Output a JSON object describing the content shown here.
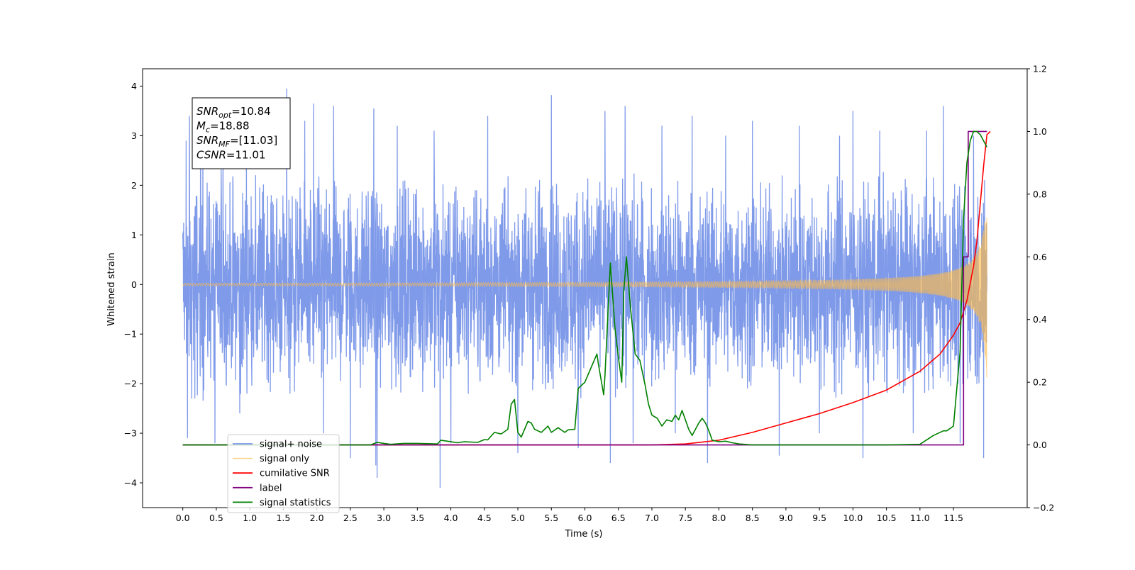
{
  "chart_data": {
    "type": "line",
    "title": "",
    "xlabel": "Time (s)",
    "ylabel": "Whitened strain",
    "y2label": "",
    "xlim": [
      -0.6,
      12.6
    ],
    "ylim": [
      -4.5,
      4.35
    ],
    "y2lim": [
      -0.2,
      1.2
    ],
    "x_ticks": [
      0.0,
      0.5,
      1.0,
      1.5,
      2.0,
      2.5,
      3.0,
      3.5,
      4.0,
      4.5,
      5.0,
      5.5,
      6.0,
      6.5,
      7.0,
      7.5,
      8.0,
      8.5,
      9.0,
      9.5,
      10.0,
      10.5,
      11.0,
      11.5
    ],
    "x_tick_labels": [
      "0.0",
      "0.5",
      "1.0",
      "1.5",
      "2.0",
      "2.5",
      "3.0",
      "3.5",
      "4.0",
      "4.5",
      "5.0",
      "5.5",
      "6.0",
      "6.5",
      "7.0",
      "7.5",
      "8.0",
      "8.5",
      "9.0",
      "9.5",
      "10.0",
      "10.5",
      "11.0",
      "11.5"
    ],
    "y_ticks": [
      -4,
      -3,
      -2,
      -1,
      0,
      1,
      2,
      3,
      4
    ],
    "y_tick_labels": [
      "−4",
      "−3",
      "−2",
      "−1",
      "0",
      "1",
      "2",
      "3",
      "4"
    ],
    "y2_ticks": [
      -0.2,
      0.0,
      0.2,
      0.4,
      0.6,
      0.8,
      1.0,
      1.2
    ],
    "y2_tick_labels": [
      "−0.2",
      "0.0",
      "0.2",
      "0.4",
      "0.6",
      "0.8",
      "1.0",
      "1.2"
    ],
    "grid": false,
    "legend_position": "lower-left",
    "annotation": {
      "lines": [
        {
          "sym": "SNR",
          "sub": "opt",
          "val": "=10.84"
        },
        {
          "sym": "M",
          "sub": "c",
          "val": "=18.88"
        },
        {
          "sym": "SNR",
          "sub": "MF",
          "val": "=[11.03]"
        },
        {
          "sym": "CSNR",
          "sub": "",
          "val": "=11.01"
        }
      ]
    },
    "series": [
      {
        "name": "signal+ noise",
        "axis": "left",
        "color": "#7895e8",
        "kind": "noise",
        "x_range": [
          0.0,
          12.0
        ],
        "envelope": [
          [
            0.0,
            2.4
          ],
          [
            2.0,
            2.2
          ],
          [
            4.0,
            2.2
          ],
          [
            6.0,
            2.3
          ],
          [
            8.0,
            2.2
          ],
          [
            10.0,
            2.3
          ],
          [
            11.0,
            2.3
          ],
          [
            12.0,
            2.2
          ]
        ],
        "peaks": [
          [
            0.05,
            2.9
          ],
          [
            0.07,
            -3.1
          ],
          [
            0.1,
            3.4
          ],
          [
            0.18,
            -2.3
          ],
          [
            0.3,
            3.3
          ],
          [
            0.48,
            -3.2
          ],
          [
            0.6,
            3.1
          ],
          [
            0.85,
            -2.6
          ],
          [
            0.95,
            2.6
          ],
          [
            1.55,
            3.95
          ],
          [
            1.6,
            -2.2
          ],
          [
            1.82,
            3.3
          ],
          [
            1.95,
            3.65
          ],
          [
            2.1,
            -3.0
          ],
          [
            2.25,
            3.6
          ],
          [
            2.5,
            -3.5
          ],
          [
            2.85,
            3.55
          ],
          [
            2.88,
            -3.65
          ],
          [
            2.9,
            -3.9
          ],
          [
            3.2,
            3.2
          ],
          [
            3.75,
            3.1
          ],
          [
            3.84,
            -4.1
          ],
          [
            4.0,
            -3.2
          ],
          [
            4.55,
            3.4
          ],
          [
            5.0,
            -3.4
          ],
          [
            5.5,
            3.82
          ],
          [
            5.9,
            -3.3
          ],
          [
            6.3,
            3.5
          ],
          [
            6.38,
            -3.6
          ],
          [
            6.6,
            3.6
          ],
          [
            6.72,
            -3.2
          ],
          [
            7.15,
            3.2
          ],
          [
            7.35,
            -3.0
          ],
          [
            7.6,
            3.4
          ],
          [
            7.83,
            -3.6
          ],
          [
            8.1,
            3.0
          ],
          [
            8.5,
            3.3
          ],
          [
            8.9,
            -3.45
          ],
          [
            9.2,
            3.2
          ],
          [
            9.5,
            -3.0
          ],
          [
            9.8,
            3.0
          ],
          [
            10.0,
            3.5
          ],
          [
            10.15,
            -3.5
          ],
          [
            10.4,
            3.1
          ],
          [
            10.9,
            -3.0
          ],
          [
            11.1,
            3.1
          ],
          [
            11.35,
            3.6
          ],
          [
            11.6,
            -3.2
          ],
          [
            11.8,
            3.0
          ],
          [
            11.95,
            -3.5
          ]
        ]
      },
      {
        "name": "signal only",
        "axis": "left",
        "color": "#ffbc4a",
        "kind": "chirp",
        "x_range": [
          0.0,
          12.0
        ],
        "amplitude_at_end": 2.0,
        "coalescence_time": 12.05
      },
      {
        "name": "cumilative SNR",
        "axis": "right",
        "color": "#ff0000",
        "x": [
          0.0,
          7.0,
          7.5,
          8.0,
          8.5,
          9.0,
          9.5,
          10.0,
          10.5,
          11.0,
          11.3,
          11.5,
          11.6,
          11.7,
          11.8,
          11.85,
          11.9,
          11.95,
          11.98,
          12.0,
          12.05
        ],
        "y": [
          0.0,
          0.0,
          0.003,
          0.015,
          0.04,
          0.07,
          0.1,
          0.135,
          0.175,
          0.235,
          0.29,
          0.35,
          0.39,
          0.46,
          0.57,
          0.65,
          0.77,
          0.89,
          0.95,
          0.99,
          1.0
        ]
      },
      {
        "name": "label",
        "axis": "right",
        "color": "#800080",
        "x": [
          0.0,
          11.65,
          11.65,
          11.72,
          11.72,
          12.0
        ],
        "y": [
          0.0,
          0.0,
          0.6,
          0.6,
          1.0,
          1.0
        ]
      },
      {
        "name": "signal statistics",
        "axis": "right",
        "color": "#008000",
        "x": [
          0.0,
          2.8,
          2.9,
          3.0,
          3.1,
          3.3,
          3.5,
          3.8,
          3.85,
          4.0,
          4.1,
          4.2,
          4.4,
          4.5,
          4.55,
          4.65,
          4.75,
          4.85,
          4.9,
          4.95,
          5.0,
          5.05,
          5.1,
          5.15,
          5.2,
          5.25,
          5.35,
          5.45,
          5.5,
          5.6,
          5.7,
          5.75,
          5.85,
          5.9,
          6.0,
          6.1,
          6.18,
          6.2,
          6.28,
          6.3,
          6.38,
          6.45,
          6.5,
          6.55,
          6.58,
          6.62,
          6.68,
          6.75,
          6.82,
          6.9,
          6.95,
          7.0,
          7.08,
          7.15,
          7.22,
          7.3,
          7.35,
          7.4,
          7.45,
          7.5,
          7.55,
          7.6,
          7.7,
          7.75,
          7.8,
          7.85,
          7.9,
          8.0,
          8.1,
          8.2,
          8.3,
          8.5,
          9.0,
          9.5,
          10.0,
          10.5,
          11.0,
          11.2,
          11.35,
          11.4,
          11.5,
          11.6,
          11.65,
          11.7,
          11.75,
          11.8,
          11.85,
          11.9,
          11.95,
          12.0
        ],
        "y": [
          0.0,
          0.0,
          0.008,
          0.005,
          0.002,
          0.005,
          0.005,
          0.003,
          0.015,
          0.01,
          0.007,
          0.01,
          0.008,
          0.017,
          0.016,
          0.04,
          0.035,
          0.05,
          0.13,
          0.145,
          0.04,
          0.025,
          0.05,
          0.075,
          0.07,
          0.05,
          0.04,
          0.06,
          0.04,
          0.055,
          0.04,
          0.048,
          0.05,
          0.18,
          0.2,
          0.25,
          0.29,
          0.26,
          0.16,
          0.22,
          0.58,
          0.37,
          0.28,
          0.2,
          0.49,
          0.6,
          0.44,
          0.29,
          0.27,
          0.19,
          0.13,
          0.095,
          0.085,
          0.06,
          0.08,
          0.075,
          0.095,
          0.08,
          0.11,
          0.08,
          0.05,
          0.03,
          0.07,
          0.085,
          0.07,
          0.045,
          0.015,
          0.01,
          0.012,
          0.007,
          0.003,
          0.0,
          0.0,
          0.0,
          0.0,
          0.0,
          0.002,
          0.03,
          0.045,
          0.045,
          0.06,
          0.3,
          0.72,
          0.9,
          0.97,
          1.0,
          1.0,
          0.99,
          0.97,
          0.95
        ]
      }
    ]
  }
}
